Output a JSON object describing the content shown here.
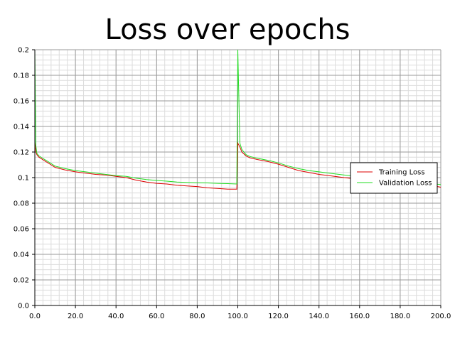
{
  "chart_data": {
    "type": "line",
    "title": "Loss over epochs",
    "xlim": [
      0,
      200
    ],
    "ylim": [
      0,
      0.2
    ],
    "x_ticks": [
      0,
      20,
      40,
      60,
      80,
      100,
      120,
      140,
      160,
      180,
      200
    ],
    "x_tick_labels": [
      "0.0",
      "20.0",
      "40.0",
      "60.0",
      "80.0",
      "100.0",
      "120.0",
      "140.0",
      "160.0",
      "180.0",
      "200.0"
    ],
    "y_ticks": [
      0,
      0.02,
      0.04,
      0.06,
      0.08,
      0.1,
      0.12,
      0.14,
      0.16,
      0.18,
      0.2
    ],
    "y_tick_labels": [
      "0.0",
      "0.02",
      "0.04",
      "0.06",
      "0.08",
      "0.1",
      "0.12",
      "0.14",
      "0.16",
      "0.18",
      "0.2"
    ],
    "grid": true,
    "legend_position": "right",
    "series": [
      {
        "name": "Training Loss",
        "color": "#dd0000",
        "points": [
          [
            0,
            0.128
          ],
          [
            0.5,
            0.12
          ],
          [
            1,
            0.118
          ],
          [
            2,
            0.116
          ],
          [
            4,
            0.114
          ],
          [
            6,
            0.112
          ],
          [
            8,
            0.11
          ],
          [
            10,
            0.108
          ],
          [
            15,
            0.106
          ],
          [
            20,
            0.1045
          ],
          [
            25,
            0.1035
          ],
          [
            30,
            0.1025
          ],
          [
            35,
            0.102
          ],
          [
            40,
            0.101
          ],
          [
            45,
            0.1
          ],
          [
            50,
            0.098
          ],
          [
            55,
            0.0965
          ],
          [
            60,
            0.0955
          ],
          [
            65,
            0.095
          ],
          [
            70,
            0.094
          ],
          [
            75,
            0.0935
          ],
          [
            80,
            0.093
          ],
          [
            85,
            0.092
          ],
          [
            90,
            0.0915
          ],
          [
            95,
            0.091
          ],
          [
            99.5,
            0.091
          ],
          [
            100,
            0.127
          ],
          [
            101,
            0.124
          ],
          [
            102,
            0.12
          ],
          [
            104,
            0.117
          ],
          [
            106,
            0.1155
          ],
          [
            110,
            0.114
          ],
          [
            115,
            0.1125
          ],
          [
            120,
            0.1105
          ],
          [
            125,
            0.108
          ],
          [
            130,
            0.1055
          ],
          [
            135,
            0.104
          ],
          [
            140,
            0.1025
          ],
          [
            145,
            0.1015
          ],
          [
            150,
            0.1005
          ],
          [
            155,
            0.0995
          ],
          [
            158,
            0.099
          ],
          [
            165,
            0.098
          ],
          [
            175,
            0.0965
          ],
          [
            185,
            0.095
          ],
          [
            195,
            0.094
          ],
          [
            200,
            0.0925
          ]
        ]
      },
      {
        "name": "Validation Loss",
        "color": "#22dd22",
        "points": [
          [
            0,
            0.2
          ],
          [
            0.5,
            0.125
          ],
          [
            1,
            0.119
          ],
          [
            2,
            0.117
          ],
          [
            4,
            0.115
          ],
          [
            6,
            0.113
          ],
          [
            8,
            0.111
          ],
          [
            10,
            0.109
          ],
          [
            15,
            0.107
          ],
          [
            20,
            0.1055
          ],
          [
            25,
            0.1045
          ],
          [
            30,
            0.1035
          ],
          [
            35,
            0.1025
          ],
          [
            40,
            0.1015
          ],
          [
            45,
            0.101
          ],
          [
            50,
            0.0995
          ],
          [
            55,
            0.0985
          ],
          [
            60,
            0.0978
          ],
          [
            65,
            0.0972
          ],
          [
            70,
            0.0965
          ],
          [
            75,
            0.0962
          ],
          [
            80,
            0.096
          ],
          [
            85,
            0.0958
          ],
          [
            90,
            0.0955
          ],
          [
            95,
            0.0953
          ],
          [
            99.5,
            0.095
          ],
          [
            100,
            0.2
          ],
          [
            101,
            0.127
          ],
          [
            102,
            0.122
          ],
          [
            104,
            0.118
          ],
          [
            106,
            0.1165
          ],
          [
            110,
            0.115
          ],
          [
            115,
            0.1135
          ],
          [
            120,
            0.1115
          ],
          [
            125,
            0.109
          ],
          [
            130,
            0.107
          ],
          [
            135,
            0.1055
          ],
          [
            140,
            0.1045
          ],
          [
            145,
            0.1035
          ],
          [
            150,
            0.1025
          ],
          [
            155,
            0.1015
          ],
          [
            158,
            0.101
          ],
          [
            165,
            0.1
          ],
          [
            175,
            0.0985
          ],
          [
            185,
            0.097
          ],
          [
            195,
            0.0955
          ],
          [
            200,
            0.0945
          ]
        ]
      }
    ]
  }
}
